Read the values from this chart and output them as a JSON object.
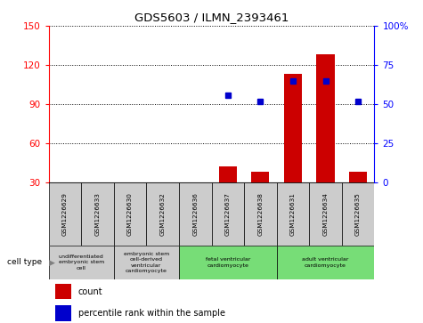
{
  "title": "GDS5603 / ILMN_2393461",
  "samples": [
    "GSM1226629",
    "GSM1226633",
    "GSM1226630",
    "GSM1226632",
    "GSM1226636",
    "GSM1226637",
    "GSM1226638",
    "GSM1226631",
    "GSM1226634",
    "GSM1226635"
  ],
  "counts": [
    0,
    0,
    0,
    0,
    0,
    42,
    38,
    113,
    128,
    38
  ],
  "percentiles": [
    null,
    null,
    null,
    null,
    null,
    56,
    52,
    65,
    65,
    52
  ],
  "ylim_left": [
    30,
    150
  ],
  "ylim_right": [
    0,
    100
  ],
  "yticks_left": [
    30,
    60,
    90,
    120,
    150
  ],
  "yticks_right": [
    0,
    25,
    50,
    75,
    100
  ],
  "bar_color": "#cc0000",
  "dot_color": "#0000cc",
  "cell_type_groups": [
    {
      "label": "undifferentiated\nembryonic stem\ncell",
      "indices": [
        0,
        1
      ],
      "color": "#cccccc"
    },
    {
      "label": "embryonic stem\ncell-derived\nventricular\ncardiomyocyte",
      "indices": [
        2,
        3
      ],
      "color": "#cccccc"
    },
    {
      "label": "fetal ventricular\ncardiomyocyte",
      "indices": [
        4,
        5,
        6
      ],
      "color": "#77dd77"
    },
    {
      "label": "adult ventricular\ncardiomyocyte",
      "indices": [
        7,
        8,
        9
      ],
      "color": "#77dd77"
    }
  ],
  "legend_count_label": "count",
  "legend_percentile_label": "percentile rank within the sample"
}
